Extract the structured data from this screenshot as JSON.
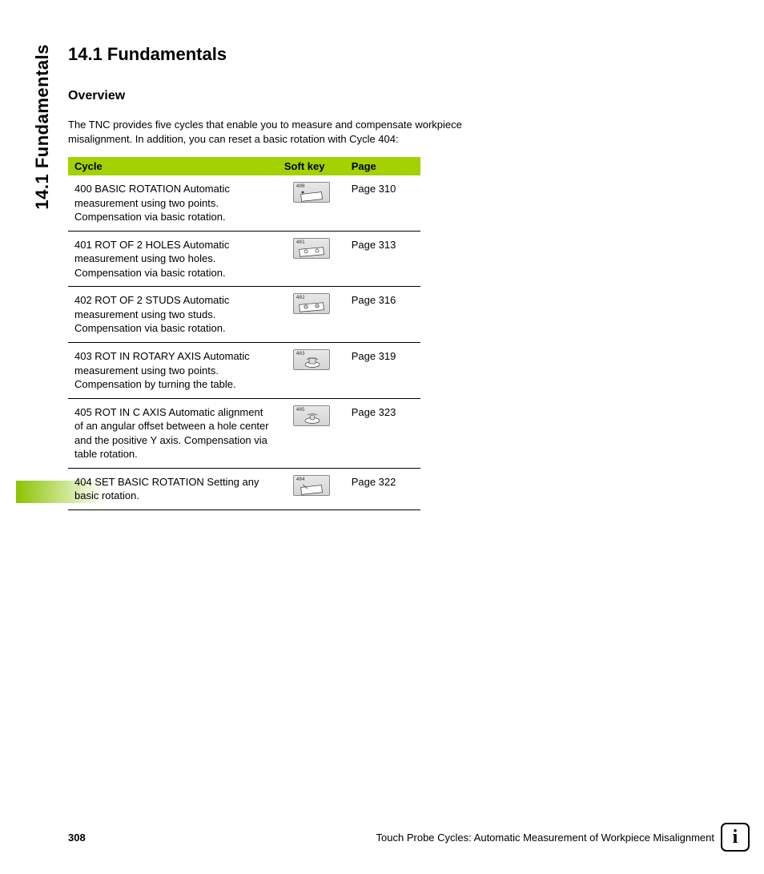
{
  "side_tab": "14.1 Fundamentals",
  "heading": "14.1 Fundamentals",
  "subheading": "Overview",
  "intro": "The TNC provides five cycles that enable you to measure and compensate workpiece misalignment. In addition, you can reset a basic rotation with Cycle 404:",
  "table": {
    "header_bg": "#a4d100",
    "columns": [
      "Cycle",
      "Soft key",
      "Page"
    ],
    "rows": [
      {
        "cycle": "400 BASIC ROTATION Automatic measurement using two points. Compensation via basic rotation.",
        "softkey_num": "400",
        "page": "Page 310"
      },
      {
        "cycle": "401 ROT OF 2 HOLES Automatic measurement using two holes. Compensation via basic rotation.",
        "softkey_num": "401",
        "page": "Page 313"
      },
      {
        "cycle": "402 ROT OF 2 STUDS Automatic measurement using two studs. Compensation via basic rotation.",
        "softkey_num": "402",
        "page": "Page 316"
      },
      {
        "cycle": "403 ROT IN ROTARY AXIS Automatic measurement using two points. Compensation by turning the table.",
        "softkey_num": "403",
        "page": "Page 319"
      },
      {
        "cycle": "405 ROT IN C AXIS Automatic alignment of an angular offset between a hole center and the positive Y axis. Compensation via table rotation.",
        "softkey_num": "405",
        "page": "Page 323"
      },
      {
        "cycle": "404 SET BASIC ROTATION Setting any basic rotation.",
        "softkey_num": "404",
        "page": "Page 322"
      }
    ]
  },
  "footer": {
    "page_number": "308",
    "chapter": "Touch Probe Cycles: Automatic Measurement of Workpiece Misalignment"
  },
  "colors": {
    "accent_green": "#a4d100",
    "gradient_green": "#8bc400",
    "text": "#000000",
    "background": "#ffffff",
    "softkey_border": "#888888"
  },
  "typography": {
    "body_family": "Arial, Helvetica, sans-serif",
    "h1_size_pt": 17,
    "h2_size_pt": 12,
    "body_size_pt": 10
  }
}
